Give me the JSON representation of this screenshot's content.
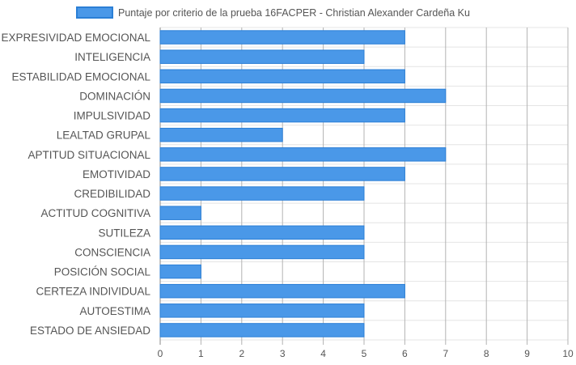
{
  "chart_data": {
    "type": "bar",
    "orientation": "horizontal",
    "categories": [
      "EXPRESIVIDAD EMOCIONAL",
      "INTELIGENCIA",
      "ESTABILIDAD EMOCIONAL",
      "DOMINACIÓN",
      "IMPULSIVIDAD",
      "LEALTAD GRUPAL",
      "APTITUD SITUACIONAL",
      "EMOTIVIDAD",
      "CREDIBILIDAD",
      "ACTITUD COGNITIVA",
      "SUTILEZA",
      "CONSCIENCIA",
      "POSICIÓN SOCIAL",
      "CERTEZA INDIVIDUAL",
      "AUTOESTIMA",
      "ESTADO DE ANSIEDAD"
    ],
    "series": [
      {
        "name": "Puntaje por criterio de la prueba 16FACPER - Christian Alexander Cardeña Ku",
        "values": [
          6,
          5,
          6,
          7,
          6,
          3,
          7,
          6,
          5,
          1,
          5,
          5,
          1,
          6,
          5,
          5
        ],
        "color": "#4a98e8",
        "border_color": "#2b7fd6"
      }
    ],
    "xlim": [
      0,
      10
    ],
    "x_ticks": [
      "0",
      "1",
      "2",
      "3",
      "4",
      "5",
      "6",
      "7",
      "8",
      "9",
      "10"
    ],
    "grid": true,
    "legend_position": "top"
  }
}
